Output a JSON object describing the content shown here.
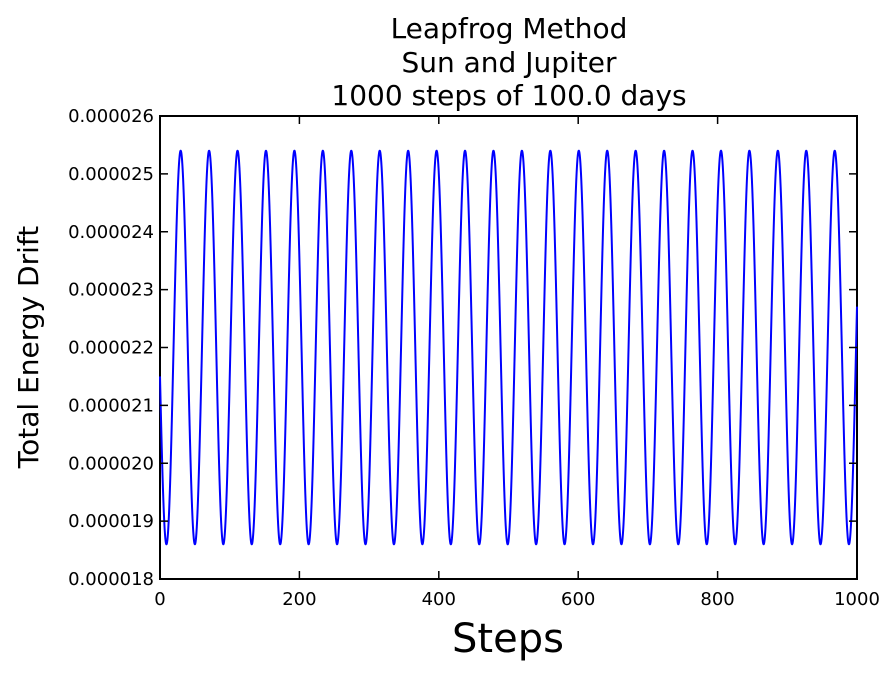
{
  "chart_data": {
    "type": "line",
    "title_lines": [
      "Leapfrog Method",
      "Sun and Jupiter",
      "1000 steps of 100.0 days"
    ],
    "xlabel": "Steps",
    "ylabel": "Total Energy Drift",
    "xlim": [
      0,
      1000
    ],
    "ylim": [
      1.8e-05,
      2.6e-05
    ],
    "xticks": [
      0,
      200,
      400,
      600,
      800,
      1000
    ],
    "xtick_labels": [
      "0",
      "200",
      "400",
      "600",
      "800",
      "1000"
    ],
    "yticks": [
      1.8e-05,
      1.9e-05,
      2e-05,
      2.1e-05,
      2.2e-05,
      2.3e-05,
      2.4e-05,
      2.5e-05,
      2.6e-05
    ],
    "ytick_labels": [
      "0.000018",
      "0.000019",
      "0.000020",
      "0.000021",
      "0.000022",
      "0.000023",
      "0.000024",
      "0.000025",
      "0.000026"
    ],
    "grid": false,
    "legend": false,
    "series": [
      {
        "color": "#0000ff",
        "signal": {
          "kind": "sinusoid",
          "min": 1.86e-05,
          "max": 2.54e-05,
          "period_steps": 40.8,
          "start_value": 2.15e-05,
          "start_direction": "down",
          "x_start": 0,
          "x_end": 1000
        }
      }
    ]
  }
}
